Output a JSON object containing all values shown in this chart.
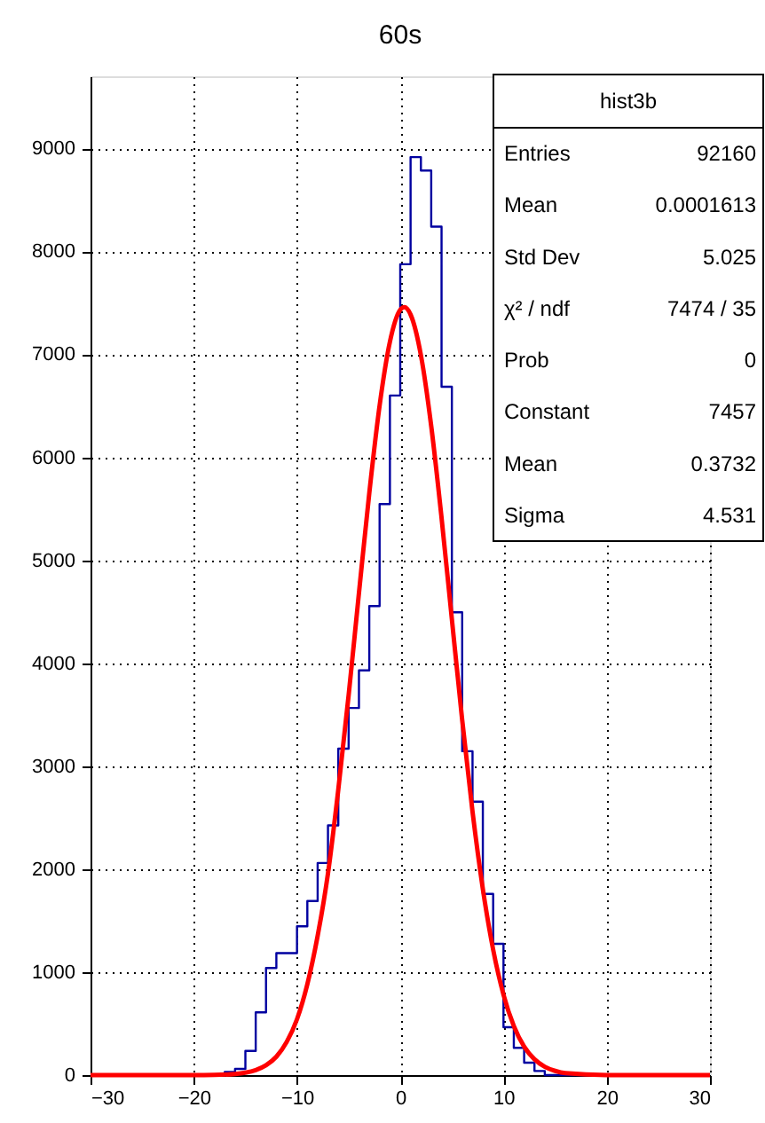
{
  "chart_data": {
    "type": "histogram",
    "title": "60s",
    "bins": [
      -30,
      -29,
      -28,
      -27,
      -26,
      -25,
      -24,
      -23,
      -22,
      -21,
      -20,
      -19,
      -18,
      -17,
      -16,
      -15,
      -14,
      -13,
      -12,
      -11,
      -10,
      -9,
      -8,
      -7,
      -6,
      -5,
      -4,
      -3,
      -2,
      -1,
      0,
      1,
      2,
      3,
      4,
      5,
      6,
      7,
      8,
      9,
      10,
      11,
      12,
      13,
      14,
      15,
      16,
      17,
      18,
      19,
      20,
      21,
      22,
      23,
      24,
      25,
      26,
      27,
      28,
      29,
      30
    ],
    "series": [
      {
        "type": "histogram",
        "color": "#0000a0",
        "values": [
          0,
          0,
          0,
          0,
          0,
          0,
          0,
          0,
          0,
          0,
          0,
          0,
          0,
          30,
          60,
          235,
          610,
          1040,
          1185,
          1185,
          1445,
          1690,
          2060,
          2425,
          3170,
          3565,
          3930,
          4555,
          5545,
          6600,
          7875,
          8915,
          8785,
          8240,
          6685,
          4495,
          3145,
          2655,
          1760,
          1275,
          465,
          265,
          120,
          40,
          0,
          0,
          0,
          0,
          0,
          0,
          0,
          0,
          0,
          0,
          0,
          0,
          0,
          0,
          0,
          0
        ]
      },
      {
        "type": "line",
        "color": "#ff0000",
        "x": [
          -30,
          -20,
          -18,
          -16,
          -15,
          -14,
          -13,
          -12,
          -11,
          -10,
          -9,
          -8,
          -7,
          -6,
          -5,
          -4,
          -3,
          -2,
          -1,
          0,
          0.4,
          1,
          2,
          3,
          4,
          5,
          6,
          7,
          8,
          9,
          10,
          11,
          12,
          13,
          14,
          15,
          16,
          20,
          30
        ],
        "values": [
          0,
          0,
          2,
          11,
          24,
          49,
          96,
          179,
          322,
          543,
          882,
          1352,
          1958,
          2774,
          3688,
          4681,
          5652,
          6502,
          7122,
          7432,
          7457,
          7386,
          6992,
          6303,
          5413,
          4427,
          3449,
          2558,
          1808,
          1218,
          781,
          477,
          277,
          154,
          81,
          41,
          19,
          1,
          0
        ]
      }
    ],
    "xlim": [
      -30,
      30
    ],
    "xticks": [
      -30,
      -20,
      -10,
      0,
      10,
      20,
      30
    ],
    "ylim": [
      0,
      9700
    ],
    "yticks": [
      0,
      1000,
      2000,
      3000,
      4000,
      5000,
      6000,
      7000,
      8000,
      9000
    ],
    "grid": true,
    "annotations": [
      "hist3b",
      "Entries",
      "92160",
      "Mean",
      "0.0001613",
      "Std Dev",
      "5.025",
      "χ² / ndf",
      "7474 / 35",
      "Prob",
      "0",
      "Constant",
      "7457",
      "Mean",
      "0.3732",
      "Sigma",
      "4.531"
    ]
  }
}
